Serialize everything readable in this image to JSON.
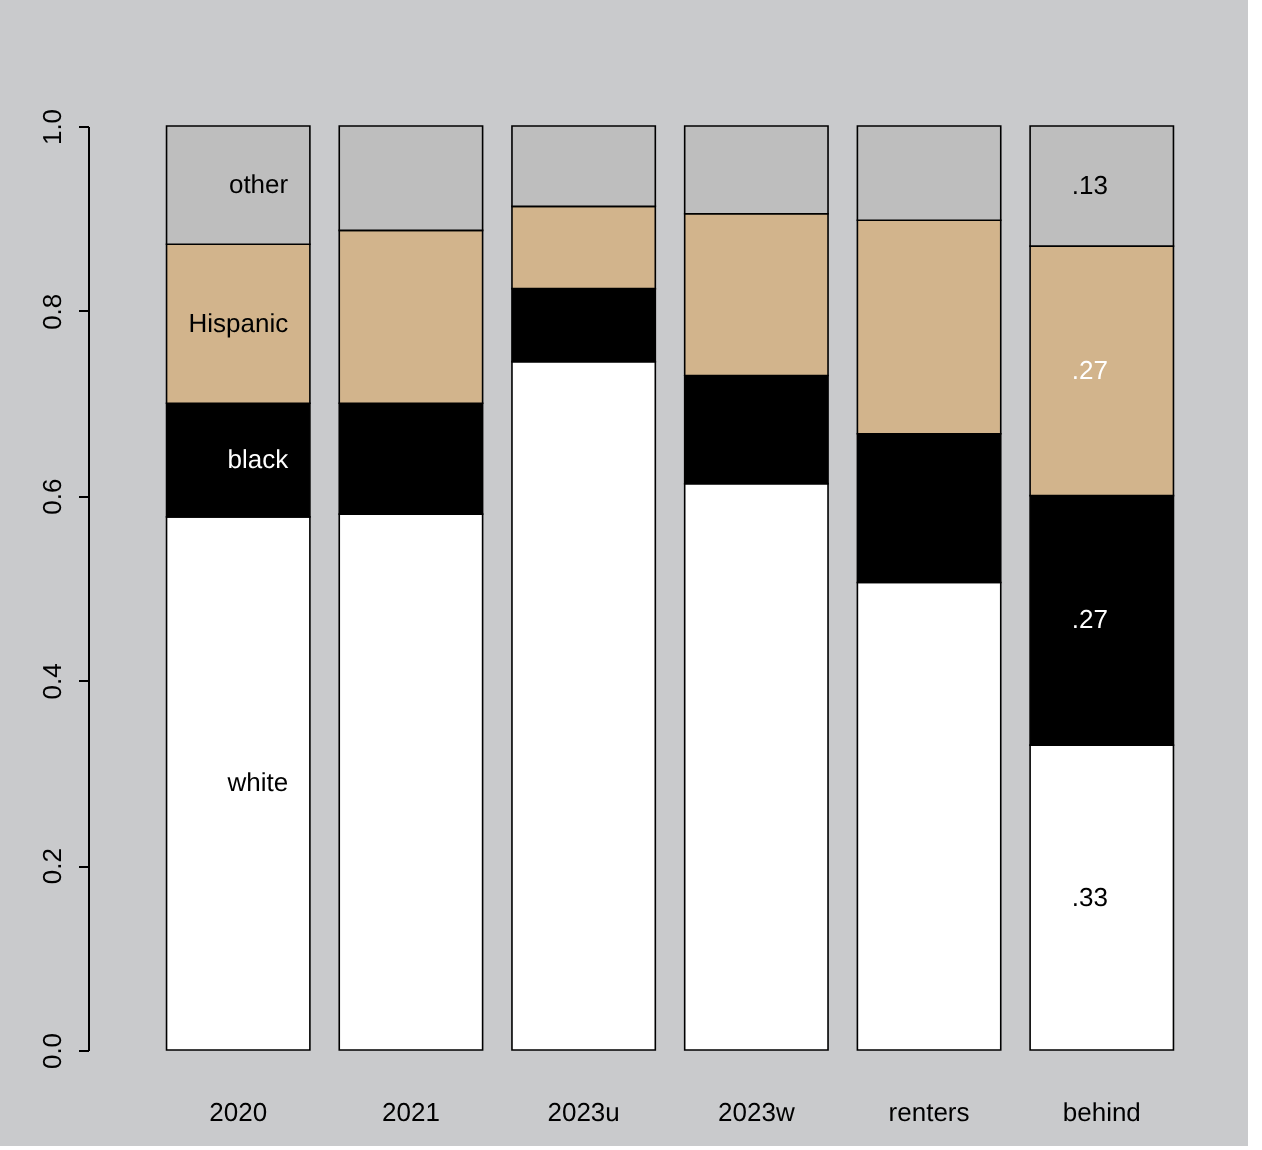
{
  "chart_data": {
    "type": "bar",
    "stacked": true,
    "categories": [
      "2020",
      "2021",
      "2023u",
      "2023w",
      "renters",
      "behind"
    ],
    "series": [
      {
        "name": "white",
        "color": "#ffffff",
        "values": [
          0.577,
          0.58,
          0.745,
          0.613,
          0.506,
          0.33
        ],
        "value_labels": [
          null,
          null,
          null,
          null,
          null,
          ".33"
        ]
      },
      {
        "name": "black",
        "color": "#000000",
        "values": [
          0.123,
          0.12,
          0.079,
          0.117,
          0.161,
          0.27
        ],
        "value_labels": [
          null,
          null,
          null,
          null,
          null,
          ".27"
        ]
      },
      {
        "name": "Hispanic",
        "color": "#d2b48c",
        "values": [
          0.172,
          0.187,
          0.089,
          0.175,
          0.231,
          0.27
        ],
        "value_labels": [
          null,
          null,
          null,
          null,
          null,
          ".27"
        ]
      },
      {
        "name": "other",
        "color": "#bebebe",
        "values": [
          0.128,
          0.113,
          0.087,
          0.095,
          0.102,
          0.13
        ],
        "value_labels": [
          null,
          null,
          null,
          null,
          null,
          ".13"
        ]
      }
    ],
    "ylim": [
      0,
      1
    ],
    "yticks": [
      {
        "value": 0,
        "label": "0.0"
      },
      0.2,
      0.4,
      0.6,
      0.8,
      {
        "value": 1,
        "label": "1.0"
      }
    ],
    "grid": false
  }
}
